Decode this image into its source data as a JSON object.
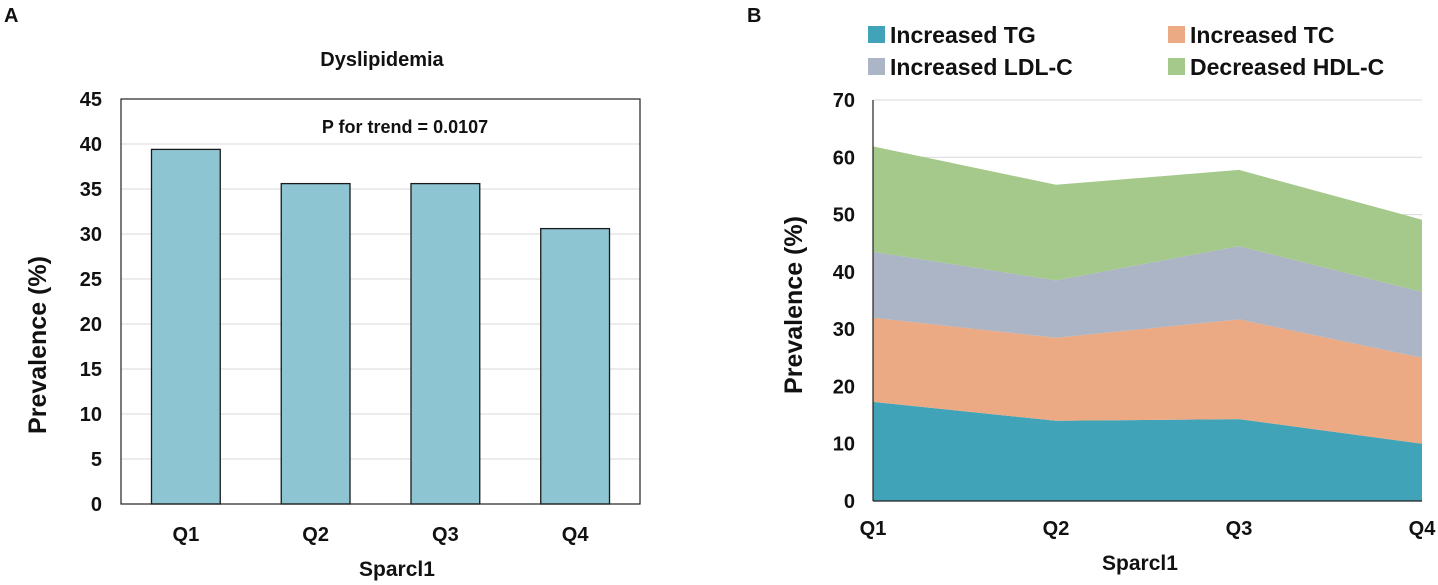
{
  "panel_a": {
    "panel_label": "A"
  },
  "panel_b": {
    "panel_label": "B"
  },
  "chart_data": [
    {
      "type": "bar",
      "title": "Dyslipidemia",
      "annotation": "P for trend = 0.0107",
      "categories": [
        "Q1",
        "Q2",
        "Q3",
        "Q4"
      ],
      "values": [
        39.4,
        35.6,
        35.6,
        30.6
      ],
      "xlabel": "Sparcl1",
      "ylabel": "Prevalence (%)",
      "ylim": [
        0,
        45
      ],
      "yticks": [
        "0",
        "5",
        "10",
        "15",
        "20",
        "25",
        "30",
        "35",
        "40",
        "45"
      ],
      "grid": true,
      "bar_color": "#8dc6d2"
    },
    {
      "type": "area",
      "stacked": true,
      "categories": [
        "Q1",
        "Q2",
        "Q3",
        "Q4"
      ],
      "xlabel": "Sparcl1",
      "ylabel": "Prevalence (%)",
      "ylim": [
        0,
        70
      ],
      "yticks": [
        "0",
        "10",
        "20",
        "30",
        "40",
        "50",
        "60",
        "70"
      ],
      "grid": true,
      "legend_position": "top",
      "series": [
        {
          "name": "Increased TG",
          "values": [
            17.3,
            14.0,
            14.3,
            10.0
          ],
          "color": "#40a3b7"
        },
        {
          "name": "Increased TC",
          "values": [
            14.7,
            14.5,
            17.4,
            15.0
          ],
          "color": "#eba984"
        },
        {
          "name": "Increased LDL-C",
          "values": [
            11.5,
            10.0,
            12.8,
            11.5
          ],
          "color": "#abb5c5"
        },
        {
          "name": "Decreased HDL-C",
          "values": [
            18.4,
            16.7,
            13.3,
            12.6
          ],
          "color": "#a5c98a"
        }
      ]
    }
  ]
}
